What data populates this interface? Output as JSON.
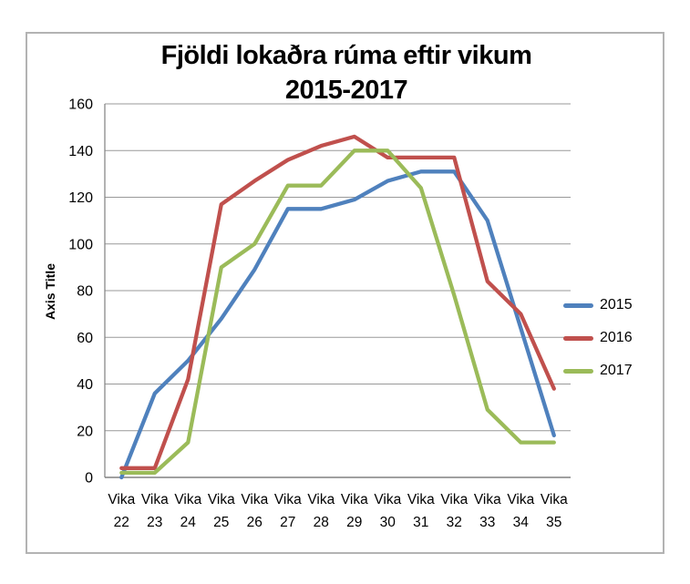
{
  "chart_data": {
    "type": "line",
    "title": "Fjöldi lokaðra rúma eftir vikum",
    "subtitle": "2015-2017",
    "ylabel": "Axis Title",
    "xlabel": "",
    "ylim": [
      0,
      160
    ],
    "ytick_step": 20,
    "yticks": [
      0,
      20,
      40,
      60,
      80,
      100,
      120,
      140,
      160
    ],
    "grid": true,
    "legend_position": "right",
    "categories": [
      "Vika 22",
      "Vika 23",
      "Vika 24",
      "Vika 25",
      "Vika 26",
      "Vika 27",
      "Vika 28",
      "Vika 29",
      "Vika 30",
      "Vika 31",
      "Vika 32",
      "Vika 33",
      "Vika 34",
      "Vika 35"
    ],
    "series": [
      {
        "name": "2015",
        "color": "#4F81BD",
        "values": [
          0,
          36,
          50,
          68,
          89,
          115,
          115,
          119,
          127,
          131,
          131,
          110,
          64,
          18
        ]
      },
      {
        "name": "2016",
        "color": "#C0504D",
        "values": [
          4,
          4,
          42,
          117,
          127,
          136,
          142,
          146,
          137,
          137,
          137,
          84,
          70,
          38
        ]
      },
      {
        "name": "2017",
        "color": "#9BBB59",
        "values": [
          2,
          2,
          15,
          90,
          100,
          125,
          125,
          140,
          140,
          124,
          78,
          29,
          15,
          15
        ]
      }
    ]
  },
  "styles": {
    "gridline_color": "#999999",
    "axis_color": "#808080",
    "tick_label_color": "#000000"
  }
}
